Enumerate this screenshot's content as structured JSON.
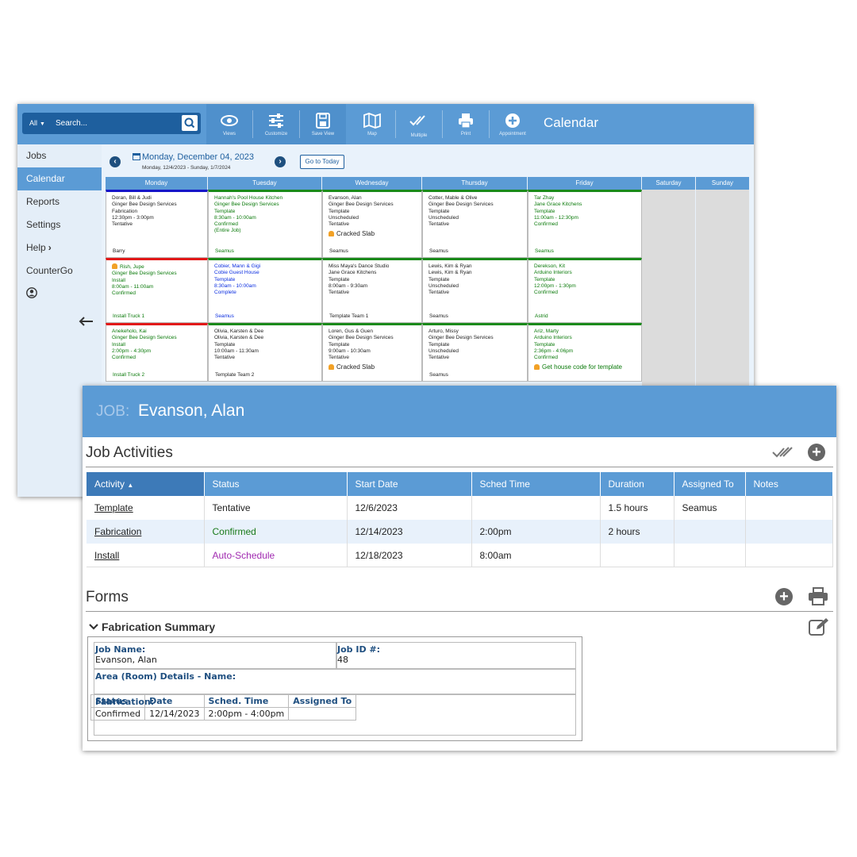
{
  "search": {
    "scope": "All",
    "placeholder": "Search..."
  },
  "toolbar": {
    "views": "Views",
    "customize": "Customize",
    "save_view": "Save View",
    "map": "Map",
    "multiple": "Multiple",
    "print": "Print",
    "appointment": "Appointment",
    "title": "Calendar"
  },
  "sidebar": {
    "items": [
      "Jobs",
      "Calendar",
      "Reports",
      "Settings",
      "Help",
      "CounterGo"
    ],
    "active": "Calendar"
  },
  "calendar": {
    "date_title": "Monday, December 04, 2023",
    "date_range": "Monday, 12/4/2023 - Sunday, 1/7/2024",
    "today_button": "Go to Today",
    "days": [
      "Monday",
      "Tuesday",
      "Wednesday",
      "Thursday",
      "Friday",
      "Saturday",
      "Sunday"
    ],
    "rows": [
      [
        {
          "lines": [
            "Doran, Bill & Judi",
            "Ginger Bee Design Services",
            "Fabrication",
            "12:30pm - 3:00pm",
            "Tentative"
          ],
          "bottom": "Barry",
          "color": "black",
          "border": "#1515c8",
          "alert": ""
        },
        {
          "lines": [
            "Hannah's Pool House Kitchen",
            "Ginger Bee Design Services",
            "Template",
            "8:30am - 10:00am",
            "Confirmed",
            "(Entire Job)"
          ],
          "bottom": "Seamus",
          "color": "green",
          "border": "#1a8a1a",
          "alert": ""
        },
        {
          "lines": [
            "Evanson, Alan",
            "Ginger Bee Design Services",
            "Template",
            "Unscheduled",
            "Tentative"
          ],
          "bottom": "Seamus",
          "color": "black",
          "border": "#1a8a1a",
          "alert": "Cracked Slab"
        },
        {
          "lines": [
            "Cotter, Mable & Olive",
            "Ginger Bee Design Services",
            "Template",
            "Unscheduled",
            "Tentative"
          ],
          "bottom": "Seamus",
          "color": "black",
          "border": "#1a8a1a",
          "alert": ""
        },
        {
          "lines": [
            "Tar Zhay",
            "Jane Grace Kitchens",
            "Template",
            "11:00am - 12:30pm",
            "Confirmed"
          ],
          "bottom": "Seamus",
          "color": "green",
          "border": "#1a8a1a",
          "alert": ""
        }
      ],
      [
        {
          "lines": [
            "Rish, Jupe",
            "Ginger Bee Design Services",
            "Install",
            "8:00am - 11:00am",
            "Confirmed"
          ],
          "bottom": "Install Truck 1",
          "color": "green",
          "border": "#e21818",
          "alert": "",
          "bell_first": true
        },
        {
          "lines": [
            "Cobier, Mann & Gigi",
            "Cobie Guest House",
            "Template",
            "8:30am - 10:00am",
            "Complete"
          ],
          "bottom": "Seamus",
          "color": "blue",
          "border": "#1a8a1a",
          "alert": ""
        },
        {
          "lines": [
            "Miss Maya's Dance Studio",
            "Jane Grace Kitchens",
            "Template",
            "8:00am - 9:30am",
            "Tentative"
          ],
          "bottom": "Template Team 1",
          "color": "black",
          "border": "#1a8a1a",
          "alert": ""
        },
        {
          "lines": [
            "Lewis, Kim & Ryan",
            "Lewis, Kim & Ryan",
            "Template",
            "Unscheduled",
            "Tentative"
          ],
          "bottom": "Seamus",
          "color": "black",
          "border": "#1a8a1a",
          "alert": ""
        },
        {
          "lines": [
            "Derekson, Kit",
            "Arduino Interiors",
            "Template",
            "12:00pm - 1:30pm",
            "Confirmed"
          ],
          "bottom": "Astrid",
          "color": "green",
          "border": "#1a8a1a",
          "alert": ""
        }
      ],
      [
        {
          "lines": [
            "Anekeholo, Kai",
            "Ginger Bee Design Services",
            "Install",
            "2:00pm - 4:30pm",
            "Confirmed"
          ],
          "bottom": "Install Truck 2",
          "color": "green",
          "border": "#e21818",
          "alert": ""
        },
        {
          "lines": [
            "Olivia, Karsten & Dee",
            "Olivia, Karsten & Dee",
            "Template",
            "10:00am - 11:30am",
            "Tentative"
          ],
          "bottom": "Template Team 2",
          "color": "black",
          "border": "#1a8a1a",
          "alert": ""
        },
        {
          "lines": [
            "Loren, Gus & Guen",
            "Ginger Bee Design Services",
            "Template",
            "9:00am - 10:30am",
            "Tentative"
          ],
          "bottom": "",
          "color": "black",
          "border": "#1a8a1a",
          "alert": "Cracked Slab"
        },
        {
          "lines": [
            "Arturo, Missy",
            "Ginger Bee Design Services",
            "Template",
            "Unscheduled",
            "Tentative"
          ],
          "bottom": "Seamus",
          "color": "black",
          "border": "#1a8a1a",
          "alert": ""
        },
        {
          "lines": [
            "Ariz, Marty",
            "Arduino Interiors",
            "Template",
            "2:36pm - 4:06pm",
            "Confirmed"
          ],
          "bottom": "",
          "color": "green",
          "border": "#1a8a1a",
          "alert": "Get house code for template"
        }
      ]
    ]
  },
  "job": {
    "label": "JOB:",
    "name": "Evanson, Alan",
    "activities_title": "Job Activities",
    "columns": [
      "Activity",
      "Status",
      "Start Date",
      "Sched Time",
      "Duration",
      "Assigned To",
      "Notes"
    ],
    "activities": [
      {
        "activity": "Template",
        "status": "Tentative",
        "start": "12/6/2023",
        "time": "",
        "duration": "1.5 hours",
        "assigned": "Seamus",
        "notes": "",
        "status_color": "black"
      },
      {
        "activity": "Fabrication",
        "status": "Confirmed",
        "start": "12/14/2023",
        "time": "2:00pm",
        "duration": "2 hours",
        "assigned": "",
        "notes": "",
        "status_color": "green"
      },
      {
        "activity": "Install",
        "status": "Auto-Schedule",
        "start": "12/18/2023",
        "time": "8:00am",
        "duration": "",
        "assigned": "",
        "notes": "",
        "status_color": "purple"
      }
    ],
    "forms_title": "Forms",
    "summary": {
      "title": "Fabrication Summary",
      "job_name_label": "Job Name:",
      "job_name": "Evanson, Alan",
      "job_id_label": "Job ID #:",
      "job_id": "48",
      "area_label": "Area (Room) Details - Name:",
      "fab_label": "Fabrication:",
      "columns": [
        "Status",
        "Date",
        "Sched. Time",
        "Assigned To"
      ],
      "row": [
        "Confirmed",
        "12/14/2023",
        "2:00pm - 4:00pm",
        ""
      ]
    }
  }
}
